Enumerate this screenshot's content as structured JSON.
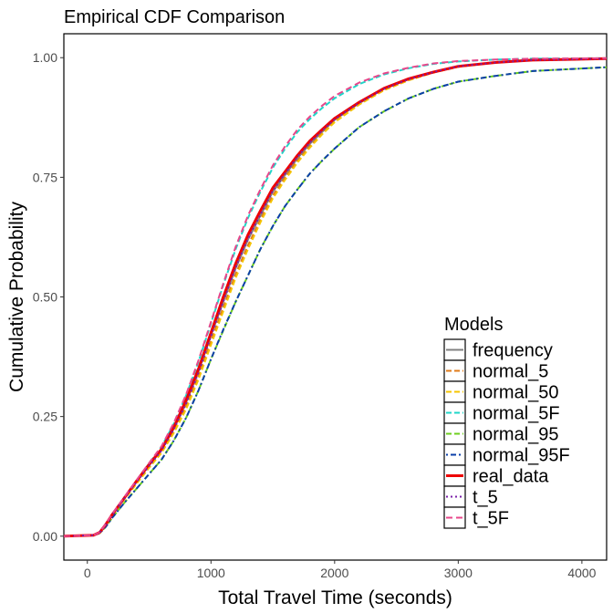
{
  "chart_data": {
    "type": "line",
    "title": "Empirical CDF Comparison",
    "xlabel": "Total Travel Time (seconds)",
    "ylabel": "Cumulative Probability",
    "xlim": [
      -190,
      4200
    ],
    "ylim": [
      -0.05,
      1.05
    ],
    "x_ticks": [
      0,
      1000,
      2000,
      3000,
      4000
    ],
    "x_tick_labels": [
      "0",
      "1000",
      "2000",
      "3000",
      "4000"
    ],
    "y_ticks": [
      0,
      0.25,
      0.5,
      0.75,
      1.0
    ],
    "y_tick_labels": [
      "0.00",
      "0.25",
      "0.50",
      "0.75",
      "1.00"
    ],
    "grid": false,
    "legend_title": "Models",
    "legend_position": "bottom-right",
    "series": [
      {
        "name": "frequency",
        "color": "#808080",
        "dash": "none",
        "width": 2,
        "x": [
          -190,
          50,
          100,
          150,
          200,
          300,
          400,
          500,
          600,
          700,
          800,
          900,
          1000,
          1100,
          1200,
          1300,
          1400,
          1500,
          1600,
          1700,
          1800,
          1900,
          2000,
          2200,
          2400,
          2600,
          2800,
          3000,
          3300,
          3600,
          4200
        ],
        "y": [
          0,
          0.002,
          0.008,
          0.025,
          0.045,
          0.08,
          0.115,
          0.148,
          0.18,
          0.225,
          0.28,
          0.345,
          0.42,
          0.49,
          0.56,
          0.62,
          0.67,
          0.72,
          0.755,
          0.79,
          0.82,
          0.845,
          0.87,
          0.905,
          0.935,
          0.955,
          0.97,
          0.982,
          0.99,
          0.995,
          0.998
        ]
      },
      {
        "name": "normal_5",
        "color": "#e07b1a",
        "dash": "6,3",
        "width": 2,
        "x": [
          -190,
          50,
          100,
          150,
          200,
          300,
          400,
          500,
          600,
          700,
          800,
          900,
          1000,
          1100,
          1200,
          1300,
          1400,
          1500,
          1600,
          1700,
          1800,
          1900,
          2000,
          2200,
          2400,
          2600,
          2800,
          3000,
          3300,
          3600,
          4200
        ],
        "y": [
          0,
          0.002,
          0.007,
          0.024,
          0.044,
          0.078,
          0.112,
          0.145,
          0.177,
          0.22,
          0.272,
          0.335,
          0.408,
          0.478,
          0.548,
          0.608,
          0.662,
          0.712,
          0.75,
          0.785,
          0.815,
          0.842,
          0.866,
          0.903,
          0.932,
          0.953,
          0.969,
          0.981,
          0.99,
          0.995,
          0.998
        ]
      },
      {
        "name": "normal_50",
        "color": "#f5c400",
        "dash": "6,3",
        "width": 2,
        "x": [
          -190,
          50,
          100,
          150,
          200,
          300,
          400,
          500,
          600,
          700,
          800,
          900,
          1000,
          1100,
          1200,
          1300,
          1400,
          1500,
          1600,
          1700,
          1800,
          1900,
          2000,
          2200,
          2400,
          2600,
          2800,
          3000,
          3300,
          3600,
          4200
        ],
        "y": [
          0,
          0.002,
          0.007,
          0.023,
          0.043,
          0.077,
          0.11,
          0.143,
          0.174,
          0.216,
          0.266,
          0.328,
          0.4,
          0.47,
          0.54,
          0.6,
          0.656,
          0.706,
          0.745,
          0.781,
          0.812,
          0.84,
          0.865,
          0.902,
          0.932,
          0.953,
          0.969,
          0.981,
          0.99,
          0.995,
          0.998
        ]
      },
      {
        "name": "normal_5F",
        "color": "#1fd6c8",
        "dash": "6,3",
        "width": 2,
        "x": [
          -190,
          50,
          100,
          150,
          200,
          300,
          400,
          500,
          600,
          700,
          800,
          900,
          1000,
          1100,
          1200,
          1300,
          1400,
          1500,
          1600,
          1700,
          1800,
          1900,
          2000,
          2200,
          2400,
          2600,
          2800,
          3000,
          3300,
          3600,
          4200
        ],
        "y": [
          0,
          0.002,
          0.008,
          0.025,
          0.045,
          0.081,
          0.117,
          0.152,
          0.187,
          0.235,
          0.295,
          0.365,
          0.445,
          0.525,
          0.6,
          0.665,
          0.72,
          0.77,
          0.81,
          0.845,
          0.872,
          0.895,
          0.915,
          0.945,
          0.965,
          0.978,
          0.987,
          0.992,
          0.996,
          0.998,
          0.999
        ]
      },
      {
        "name": "normal_95",
        "color": "#6ecf1f",
        "dash": "6,3",
        "width": 2,
        "x": [
          -190,
          50,
          100,
          150,
          200,
          300,
          400,
          500,
          600,
          700,
          800,
          900,
          1000,
          1100,
          1200,
          1300,
          1400,
          1500,
          1600,
          1700,
          1800,
          1900,
          2000,
          2200,
          2400,
          2600,
          2800,
          3000,
          3300,
          3600,
          4200
        ],
        "y": [
          0,
          0.002,
          0.006,
          0.02,
          0.038,
          0.07,
          0.1,
          0.13,
          0.16,
          0.2,
          0.248,
          0.305,
          0.37,
          0.43,
          0.49,
          0.545,
          0.6,
          0.648,
          0.69,
          0.725,
          0.758,
          0.785,
          0.81,
          0.855,
          0.888,
          0.915,
          0.935,
          0.95,
          0.962,
          0.972,
          0.98
        ]
      },
      {
        "name": "normal_95F",
        "color": "#0b3fa8",
        "dash": "2,3,6,3",
        "width": 2,
        "x": [
          -190,
          50,
          100,
          150,
          200,
          300,
          400,
          500,
          600,
          700,
          800,
          900,
          1000,
          1100,
          1200,
          1300,
          1400,
          1500,
          1600,
          1700,
          1800,
          1900,
          2000,
          2200,
          2400,
          2600,
          2800,
          3000,
          3300,
          3600,
          4200
        ],
        "y": [
          0,
          0.002,
          0.006,
          0.02,
          0.038,
          0.07,
          0.1,
          0.13,
          0.16,
          0.2,
          0.248,
          0.305,
          0.37,
          0.432,
          0.49,
          0.545,
          0.6,
          0.648,
          0.69,
          0.725,
          0.758,
          0.785,
          0.81,
          0.855,
          0.888,
          0.915,
          0.935,
          0.95,
          0.962,
          0.972,
          0.98
        ]
      },
      {
        "name": "real_data",
        "color": "#ee0000",
        "dash": "none",
        "width": 3,
        "x": [
          -190,
          50,
          100,
          150,
          200,
          300,
          400,
          500,
          600,
          700,
          800,
          900,
          1000,
          1100,
          1200,
          1300,
          1400,
          1500,
          1600,
          1700,
          1800,
          1900,
          2000,
          2200,
          2400,
          2600,
          2800,
          3000,
          3300,
          3600,
          4200
        ],
        "y": [
          0,
          0.002,
          0.008,
          0.025,
          0.045,
          0.08,
          0.116,
          0.15,
          0.182,
          0.228,
          0.285,
          0.35,
          0.425,
          0.5,
          0.57,
          0.63,
          0.68,
          0.728,
          0.762,
          0.796,
          0.826,
          0.85,
          0.873,
          0.907,
          0.936,
          0.956,
          0.97,
          0.982,
          0.99,
          0.995,
          0.998
        ]
      },
      {
        "name": "t_5",
        "color": "#7a1fa8",
        "dash": "2,3",
        "width": 2,
        "x": [
          -190,
          50,
          100,
          150,
          200,
          300,
          400,
          500,
          600,
          700,
          800,
          900,
          1000,
          1100,
          1200,
          1300,
          1400,
          1500,
          1600,
          1700,
          1800,
          1900,
          2000,
          2200,
          2400,
          2600,
          2800,
          3000,
          3300,
          3600,
          4200
        ],
        "y": [
          0,
          0.002,
          0.008,
          0.025,
          0.045,
          0.079,
          0.114,
          0.147,
          0.179,
          0.224,
          0.278,
          0.342,
          0.418,
          0.49,
          0.562,
          0.622,
          0.672,
          0.722,
          0.758,
          0.793,
          0.823,
          0.848,
          0.871,
          0.906,
          0.935,
          0.955,
          0.97,
          0.982,
          0.99,
          0.995,
          0.998
        ]
      },
      {
        "name": "t_5F",
        "color": "#e8478b",
        "dash": "7,4",
        "width": 2,
        "x": [
          -190,
          50,
          100,
          150,
          200,
          300,
          400,
          500,
          600,
          700,
          800,
          900,
          1000,
          1100,
          1200,
          1300,
          1400,
          1500,
          1600,
          1700,
          1800,
          1900,
          2000,
          2200,
          2400,
          2600,
          2800,
          3000,
          3300,
          3600,
          4200
        ],
        "y": [
          0,
          0.002,
          0.008,
          0.026,
          0.046,
          0.082,
          0.118,
          0.153,
          0.188,
          0.237,
          0.297,
          0.368,
          0.448,
          0.528,
          0.605,
          0.67,
          0.725,
          0.775,
          0.815,
          0.85,
          0.877,
          0.9,
          0.92,
          0.948,
          0.967,
          0.979,
          0.988,
          0.993,
          0.996,
          0.998,
          0.999
        ]
      }
    ]
  }
}
